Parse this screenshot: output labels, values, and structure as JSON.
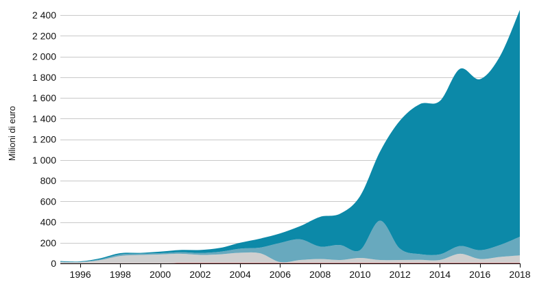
{
  "chart_data": {
    "type": "area",
    "stacked": true,
    "title": "",
    "xlabel": "",
    "ylabel": "Milioni di euro",
    "xlim": [
      1995,
      2018
    ],
    "ylim": [
      0,
      2450
    ],
    "x_ticks": [
      1996,
      1998,
      2000,
      2002,
      2004,
      2006,
      2008,
      2010,
      2012,
      2014,
      2016,
      2018
    ],
    "y_ticks": [
      0,
      200,
      400,
      600,
      800,
      1000,
      1200,
      1400,
      1600,
      1800,
      2000,
      2200,
      2400
    ],
    "y_tick_labels": [
      "0",
      "200",
      "400",
      "600",
      "800",
      "1 000",
      "1 200",
      "1 400",
      "1 600",
      "1 800",
      "2 000",
      "2 200",
      "2 400"
    ],
    "grid": true,
    "legend": "none",
    "x": [
      1995,
      1996,
      1997,
      1998,
      1999,
      2000,
      2001,
      2002,
      2003,
      2004,
      2005,
      2006,
      2007,
      2008,
      2009,
      2010,
      2011,
      2012,
      2013,
      2014,
      2015,
      2016,
      2017,
      2018
    ],
    "series": [
      {
        "color": "#d9343a",
        "values": [
          2,
          2,
          2,
          2,
          2,
          2,
          3,
          3,
          3,
          3,
          3,
          3,
          3,
          3,
          3,
          3,
          3,
          3,
          3,
          3,
          3,
          3,
          3,
          3
        ]
      },
      {
        "color": "#cfcfcf",
        "values": [
          10,
          10,
          30,
          70,
          80,
          85,
          90,
          80,
          85,
          100,
          95,
          10,
          30,
          40,
          30,
          50,
          30,
          30,
          32,
          30,
          90,
          40,
          60,
          75
        ]
      },
      {
        "color": "#68a9be",
        "values": [
          5,
          4,
          8,
          15,
          12,
          12,
          15,
          18,
          25,
          40,
          55,
          185,
          200,
          120,
          145,
          75,
          380,
          110,
          55,
          55,
          75,
          85,
          115,
          180
        ]
      },
      {
        "color": "#0c89a8",
        "values": [
          5,
          4,
          10,
          12,
          8,
          15,
          22,
          29,
          37,
          57,
          87,
          92,
          127,
          287,
          302,
          522,
          667,
          1237,
          1450,
          1482,
          1712,
          1652,
          1822,
          2192
        ]
      }
    ]
  }
}
